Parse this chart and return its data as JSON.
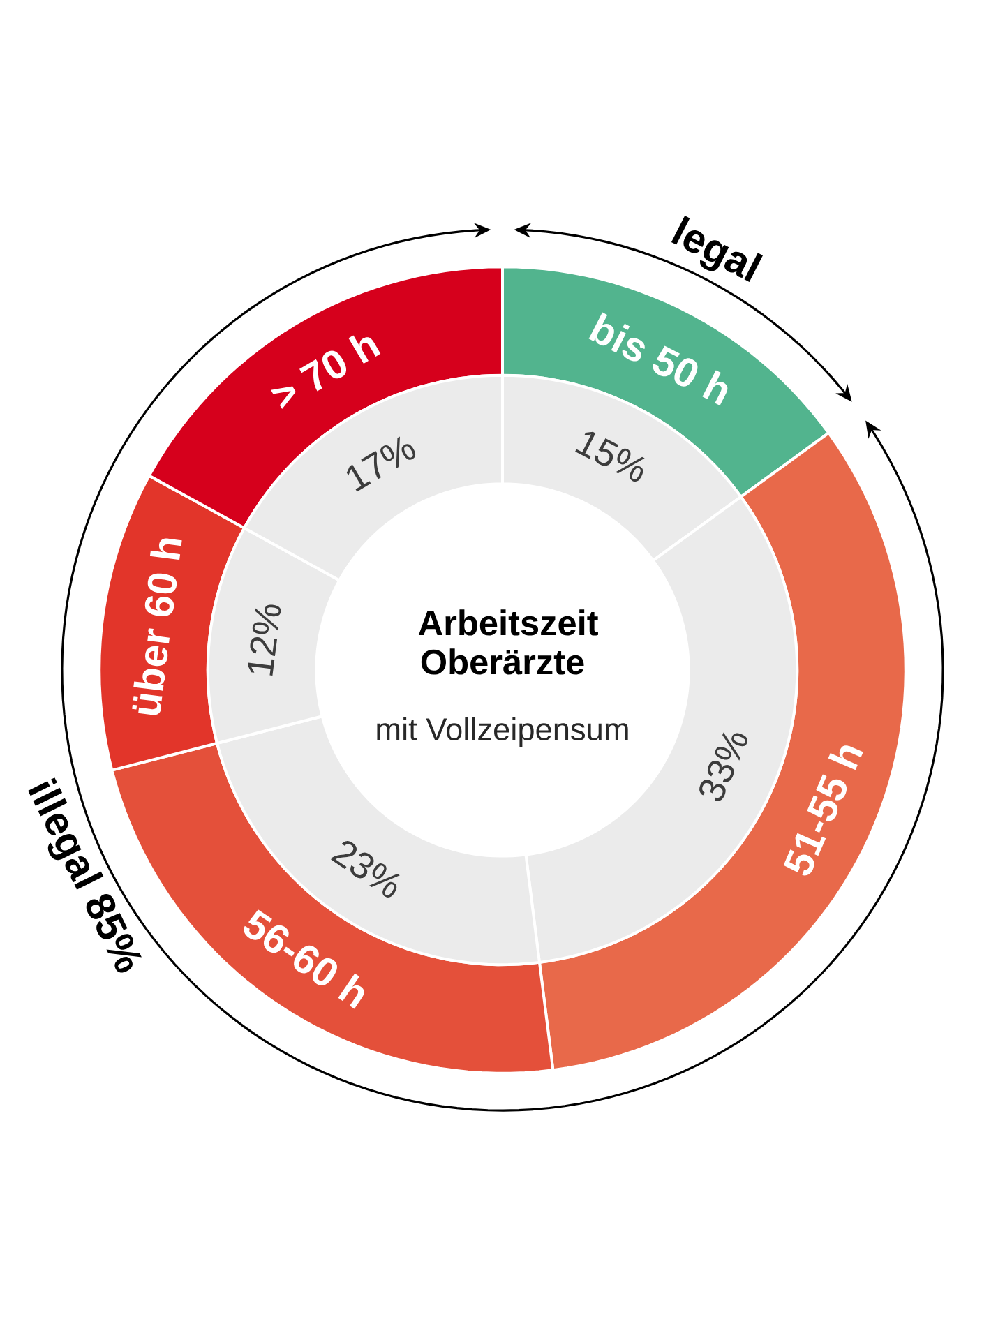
{
  "chart_data": {
    "type": "donut",
    "title": "Arbeitszeit Oberärzte",
    "subtitle": "mit Vollzeipensum",
    "categories": [
      "bis 50 h",
      "51-55 h",
      "56-60 h",
      "über 60 h",
      "> 70 h"
    ],
    "series": [
      {
        "values": [
          15,
          33,
          23,
          12,
          17
        ],
        "colors": [
          "#52b48e",
          "#e8694a",
          "#e4503a",
          "#e2352a",
          "#d6001c"
        ]
      },
      {
        "values": [
          15,
          33,
          23,
          12,
          17
        ],
        "color": "#ebebeb",
        "value_labels": [
          "15%",
          "33%",
          "23%",
          "12%",
          "17%"
        ]
      }
    ],
    "annotations": [
      "legal",
      "illegal 85%"
    ]
  }
}
